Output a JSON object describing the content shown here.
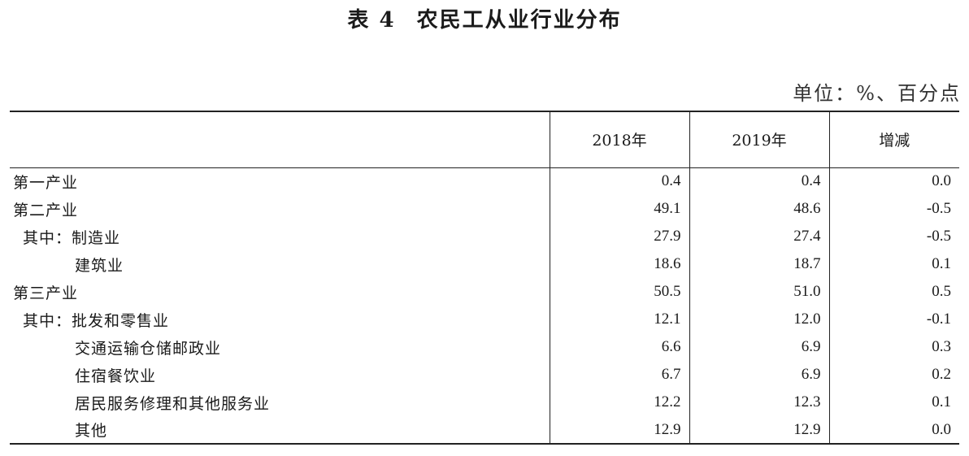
{
  "title": {
    "label": "表 4",
    "text": "农民工从业行业分布"
  },
  "unit": "单位：%、百分点",
  "table": {
    "headers": [
      "",
      "2018年",
      "2019年",
      "增减"
    ],
    "rows": [
      {
        "name": "第一产业",
        "indent": 0,
        "y2018": "0.4",
        "y2019": "0.4",
        "change": "0.0"
      },
      {
        "name": "第二产业",
        "indent": 0,
        "y2018": "49.1",
        "y2019": "48.6",
        "change": "-0.5"
      },
      {
        "name": "其中：制造业",
        "indent": 1,
        "y2018": "27.9",
        "y2019": "27.4",
        "change": "-0.5"
      },
      {
        "name": "建筑业",
        "indent": 2,
        "y2018": "18.6",
        "y2019": "18.7",
        "change": "0.1"
      },
      {
        "name": "第三产业",
        "indent": 0,
        "y2018": "50.5",
        "y2019": "51.0",
        "change": "0.5"
      },
      {
        "name": "其中：批发和零售业",
        "indent": 1,
        "y2018": "12.1",
        "y2019": "12.0",
        "change": "-0.1"
      },
      {
        "name": "交通运输仓储邮政业",
        "indent": 2,
        "y2018": "6.6",
        "y2019": "6.9",
        "change": "0.3"
      },
      {
        "name": "住宿餐饮业",
        "indent": 2,
        "y2018": "6.7",
        "y2019": "6.9",
        "change": "0.2"
      },
      {
        "name": "居民服务修理和其他服务业",
        "indent": 2,
        "y2018": "12.2",
        "y2019": "12.3",
        "change": "0.1"
      },
      {
        "name": "其他",
        "indent": 2,
        "y2018": "12.9",
        "y2019": "12.9",
        "change": "0.0"
      }
    ]
  }
}
